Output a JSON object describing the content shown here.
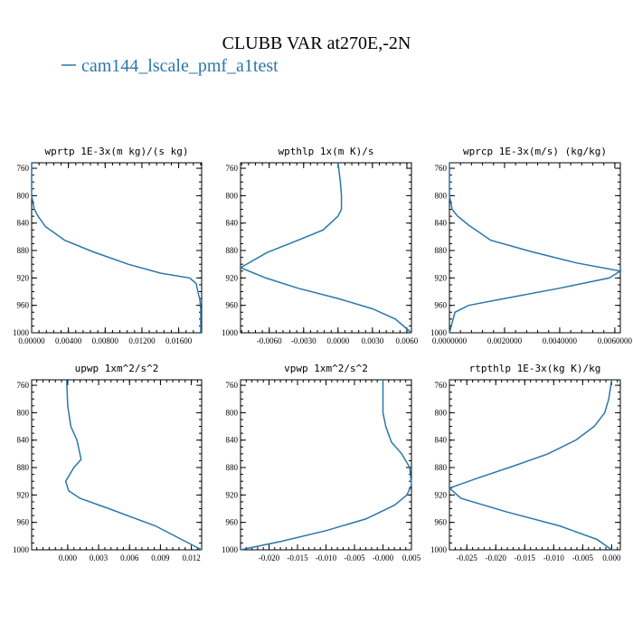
{
  "figure": {
    "title": "CLUBB VAR at270E,-2N",
    "legend_label": "cam144_lscale_pmf_a1test",
    "line_color": "#2a77a8"
  },
  "chart_data": [
    {
      "type": "line",
      "title": "wprtp  1E-3x(m kg)/(s kg)",
      "xlim": [
        0,
        0.0185
      ],
      "ylim": [
        1000,
        752
      ],
      "xticks": [
        0,
        0.004,
        0.008,
        0.012,
        0.016
      ],
      "xtick_labels": [
        "0.00000",
        "0.00400",
        "0.00800",
        "0.01200",
        "0.01600"
      ],
      "yticks": [
        760,
        800,
        840,
        880,
        920,
        960,
        1000
      ],
      "ytick_labels": [
        "760",
        "800",
        "840",
        "880",
        "920",
        "960",
        "1000"
      ],
      "series": [
        {
          "x": [
            0.0,
            0.0,
            0.0003,
            0.0007,
            0.0015,
            0.0036,
            0.0067,
            0.0105,
            0.014,
            0.0172,
            0.0179,
            0.0181,
            0.0183,
            0.0184,
            0.0184
          ],
          "y": [
            752,
            800,
            820,
            830,
            845,
            865,
            882,
            900,
            913,
            920,
            928,
            940,
            952,
            965,
            1000
          ]
        }
      ]
    },
    {
      "type": "line",
      "title": "wpthlp  1x(m K)/s",
      "xlim": [
        -0.0085,
        0.0064
      ],
      "ylim": [
        1000,
        752
      ],
      "xticks": [
        -0.006,
        -0.003,
        0.0,
        0.003,
        0.006
      ],
      "xtick_labels": [
        "-0.0060",
        "-0.0030",
        "0.0000",
        "0.0030",
        "0.0060"
      ],
      "yticks": [
        760,
        800,
        840,
        880,
        920,
        960,
        1000
      ],
      "ytick_labels": [
        "760",
        "800",
        "840",
        "880",
        "920",
        "960",
        "1000"
      ],
      "series": [
        {
          "x": [
            0.0,
            0.0002,
            0.0003,
            0.0003,
            0.0,
            -0.0013,
            -0.0035,
            -0.0062,
            -0.0085,
            -0.0063,
            -0.0035,
            0.0,
            0.003,
            0.005,
            0.0064
          ],
          "y": [
            752,
            780,
            800,
            820,
            830,
            850,
            865,
            883,
            905,
            920,
            935,
            950,
            965,
            980,
            1000
          ]
        }
      ]
    },
    {
      "type": "line",
      "title": "wprcp  1E-3x(m/s) (kg/kg)",
      "xlim": [
        0,
        0.0062
      ],
      "ylim": [
        1000,
        752
      ],
      "xticks": [
        0,
        0.002,
        0.004,
        0.006
      ],
      "xtick_labels": [
        "0.0000000",
        "0.0020000",
        "0.0040000",
        "0.0060000"
      ],
      "yticks": [
        760,
        800,
        840,
        880,
        920,
        960,
        1000
      ],
      "ytick_labels": [
        "760",
        "800",
        "840",
        "880",
        "920",
        "960",
        "1000"
      ],
      "series": [
        {
          "x": [
            0.0,
            0.0,
            0.0001,
            0.0003,
            0.0007,
            0.0015,
            0.003,
            0.0046,
            0.0062,
            0.0058,
            0.004,
            0.002,
            0.0007,
            0.0002,
            0.0
          ],
          "y": [
            752,
            800,
            820,
            830,
            843,
            865,
            882,
            898,
            910,
            920,
            935,
            950,
            960,
            970,
            1000
          ]
        }
      ]
    },
    {
      "type": "line",
      "title": "upwp  1xm^2/s^2",
      "xlim": [
        -0.0035,
        0.013
      ],
      "ylim": [
        1000,
        752
      ],
      "xticks": [
        0.0,
        0.003,
        0.006,
        0.009,
        0.012
      ],
      "xtick_labels": [
        "0.000",
        "0.003",
        "0.006",
        "0.009",
        "0.012"
      ],
      "yticks": [
        760,
        800,
        840,
        880,
        920,
        960,
        1000
      ],
      "ytick_labels": [
        "760",
        "800",
        "840",
        "880",
        "920",
        "960",
        "1000"
      ],
      "series": [
        {
          "x": [
            -0.0001,
            0.0,
            0.0003,
            0.0009,
            0.0013,
            0.0006,
            -0.0002,
            0.0001,
            0.0012,
            0.004,
            0.0085,
            0.013
          ],
          "y": [
            752,
            790,
            820,
            840,
            868,
            880,
            900,
            914,
            925,
            940,
            965,
            1000
          ]
        }
      ]
    },
    {
      "type": "line",
      "title": "vpwp  1xm^2/s^2",
      "xlim": [
        -0.025,
        0.005
      ],
      "ylim": [
        1000,
        752
      ],
      "xticks": [
        -0.02,
        -0.015,
        -0.01,
        -0.005,
        0.0,
        0.005
      ],
      "xtick_labels": [
        "-0.020",
        "-0.015",
        "-0.010",
        "-0.005",
        "-0.000",
        "0.005"
      ],
      "yticks": [
        760,
        800,
        840,
        880,
        920,
        960,
        1000
      ],
      "ytick_labels": [
        "760",
        "800",
        "840",
        "880",
        "920",
        "960",
        "1000"
      ],
      "series": [
        {
          "x": [
            0.0,
            0.0,
            0.0005,
            0.0015,
            0.0033,
            0.0047,
            0.005,
            0.0042,
            0.002,
            -0.003,
            -0.01,
            -0.018,
            -0.025
          ],
          "y": [
            752,
            800,
            820,
            843,
            860,
            880,
            905,
            920,
            935,
            955,
            972,
            988,
            1000
          ]
        }
      ]
    },
    {
      "type": "line",
      "title": "rtpthlp  1E-3x(kg K)/kg",
      "xlim": [
        -0.028,
        0.0015
      ],
      "ylim": [
        1000,
        752
      ],
      "xticks": [
        -0.025,
        -0.02,
        -0.015,
        -0.01,
        -0.005,
        0.0
      ],
      "xtick_labels": [
        "-0.025",
        "-0.020",
        "-0.015",
        "-0.010",
        "-0.005",
        "0.000"
      ],
      "yticks": [
        760,
        800,
        840,
        880,
        920,
        960,
        1000
      ],
      "ytick_labels": [
        "760",
        "800",
        "840",
        "880",
        "920",
        "960",
        "1000"
      ],
      "series": [
        {
          "x": [
            0.0,
            -0.0005,
            -0.0012,
            -0.003,
            -0.0062,
            -0.011,
            -0.017,
            -0.023,
            -0.028,
            -0.026,
            -0.018,
            -0.009,
            -0.0025,
            0.0
          ],
          "y": [
            752,
            780,
            800,
            820,
            840,
            860,
            878,
            895,
            910,
            925,
            945,
            965,
            985,
            1000
          ]
        }
      ]
    }
  ]
}
